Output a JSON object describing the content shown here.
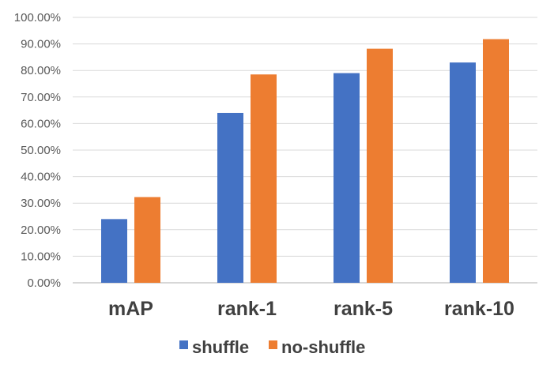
{
  "chart_data": {
    "type": "bar",
    "categories": [
      "mAP",
      "rank-1",
      "rank-5",
      "rank-10"
    ],
    "series": [
      {
        "name": "shuffle",
        "color": "#4472c4",
        "values": [
          24.0,
          64.0,
          79.0,
          83.0
        ]
      },
      {
        "name": "no-shuffle",
        "color": "#ed7d31",
        "values": [
          32.3,
          78.5,
          88.2,
          91.8
        ]
      }
    ],
    "ylim": [
      0,
      100
    ],
    "yticks": [
      0,
      10,
      20,
      30,
      40,
      50,
      60,
      70,
      80,
      90,
      100
    ],
    "ytick_labels": [
      "0.00%",
      "10.00%",
      "20.00%",
      "30.00%",
      "40.00%",
      "50.00%",
      "60.00%",
      "70.00%",
      "80.00%",
      "90.00%",
      "100.00%"
    ],
    "grid": true,
    "legend": "bottom"
  }
}
